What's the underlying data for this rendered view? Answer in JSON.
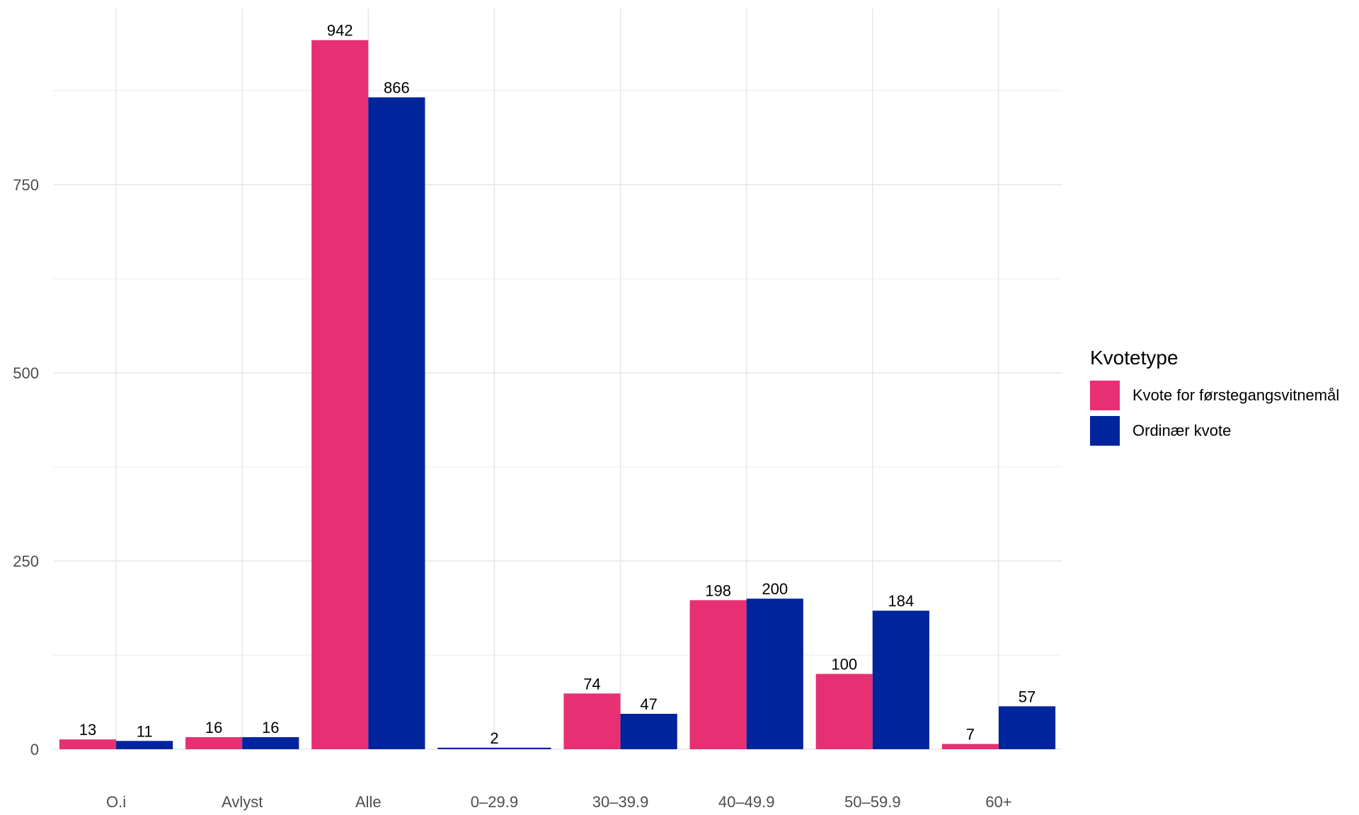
{
  "chart_data": {
    "type": "bar",
    "categories": [
      "O.i",
      "Avlyst",
      "Alle",
      "0–29.9",
      "30–39.9",
      "40–49.9",
      "50–59.9",
      "60+"
    ],
    "series": [
      {
        "name": "Kvote for førstegangsvitnemål",
        "color": "#e63073",
        "values": [
          13,
          16,
          942,
          null,
          74,
          198,
          100,
          7
        ]
      },
      {
        "name": "Ordinær kvote",
        "color": "#00249c",
        "values": [
          11,
          16,
          866,
          2,
          47,
          200,
          184,
          57
        ]
      }
    ],
    "title": "",
    "xlabel": "",
    "ylabel": "",
    "ylim": [
      0,
      992
    ],
    "yticks": [
      0,
      250,
      500,
      750
    ],
    "grid": true,
    "legend": {
      "title": "Kvotetype",
      "position": "right"
    }
  }
}
